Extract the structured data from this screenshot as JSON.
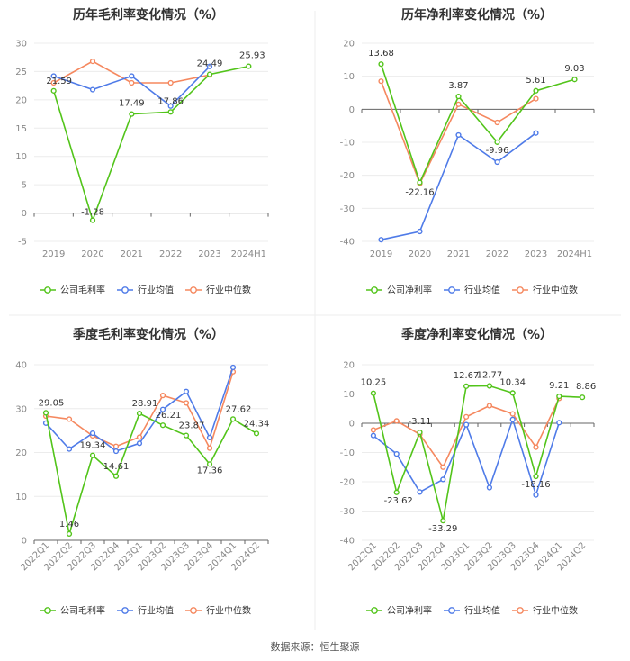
{
  "colors": {
    "company": "#52c41a",
    "avg": "#4f7be8",
    "median": "#f5885f"
  },
  "legend": {
    "avg": "行业均值",
    "median": "行业中位数"
  },
  "source": "数据来源：恒生聚源",
  "chart_data": [
    {
      "type": "line",
      "title": "历年毛利率变化情况（%）",
      "legend_company": "公司毛利率",
      "categories": [
        "2019",
        "2020",
        "2021",
        "2022",
        "2023",
        "2024H1"
      ],
      "ylim": [
        -5,
        30
      ],
      "yticks": [
        -5,
        0,
        5,
        10,
        15,
        20,
        25,
        30
      ],
      "series": [
        {
          "key": "company",
          "name": "公司毛利率",
          "values": [
            21.59,
            -1.28,
            17.49,
            17.86,
            24.49,
            25.93
          ],
          "labels": [
            "21.59",
            "-1.28",
            "17.49",
            "17.86",
            "24.49",
            "25.93"
          ]
        },
        {
          "key": "avg",
          "name": "行业均值",
          "values": [
            24.2,
            21.8,
            24.2,
            18.9,
            25.9,
            null
          ]
        },
        {
          "key": "median",
          "name": "行业中位数",
          "values": [
            23.0,
            26.8,
            23.0,
            23.0,
            24.4,
            null
          ]
        }
      ]
    },
    {
      "type": "line",
      "title": "历年净利率变化情况（%）",
      "legend_company": "公司净利率",
      "categories": [
        "2019",
        "2020",
        "2021",
        "2022",
        "2023",
        "2024H1"
      ],
      "ylim": [
        -40,
        20
      ],
      "yticks": [
        -40,
        -30,
        -20,
        -10,
        0,
        10,
        20
      ],
      "series": [
        {
          "key": "company",
          "name": "公司净利率",
          "values": [
            13.68,
            -22.16,
            3.87,
            -9.96,
            5.61,
            9.03
          ],
          "labels": [
            "13.68",
            "-22.16",
            "3.87",
            "-9.96",
            "5.61",
            "9.03"
          ]
        },
        {
          "key": "avg",
          "name": "行业均值",
          "values": [
            -39.5,
            -37.0,
            -7.8,
            -16.0,
            -7.2,
            null
          ]
        },
        {
          "key": "median",
          "name": "行业中位数",
          "values": [
            8.5,
            -22.5,
            1.5,
            -4.0,
            3.2,
            null
          ]
        }
      ]
    },
    {
      "type": "line",
      "title": "季度毛利率变化情况（%）",
      "legend_company": "公司毛利率",
      "categories": [
        "2022Q1",
        "2022Q2",
        "2022Q3",
        "2022Q4",
        "2023Q1",
        "2023Q2",
        "2023Q3",
        "2023Q4",
        "2024Q1",
        "2024Q2"
      ],
      "ylim": [
        0,
        40
      ],
      "yticks": [
        0,
        10,
        20,
        30,
        40
      ],
      "series": [
        {
          "key": "company",
          "name": "公司毛利率",
          "values": [
            29.05,
            1.46,
            19.34,
            14.61,
            28.91,
            26.21,
            23.87,
            17.36,
            27.62,
            24.34
          ],
          "labels": [
            "29.05",
            "1.46",
            "19.34",
            "14.61",
            "28.91",
            "26.21",
            "23.87",
            "17.36",
            "27.62",
            "24.34"
          ]
        },
        {
          "key": "avg",
          "name": "行业均值",
          "values": [
            26.7,
            20.8,
            24.4,
            20.3,
            22.1,
            29.8,
            33.9,
            23.4,
            39.4,
            null
          ]
        },
        {
          "key": "median",
          "name": "行业中位数",
          "values": [
            28.3,
            27.6,
            23.8,
            21.4,
            23.5,
            33.0,
            31.3,
            21.0,
            38.4,
            null
          ]
        }
      ]
    },
    {
      "type": "line",
      "title": "季度净利率变化情况（%）",
      "legend_company": "公司净利率",
      "categories": [
        "2022Q1",
        "2022Q2",
        "2022Q3",
        "2022Q4",
        "2023Q1",
        "2023Q2",
        "2023Q3",
        "2023Q4",
        "2024Q1",
        "2024Q2"
      ],
      "ylim": [
        -40,
        20
      ],
      "yticks": [
        -40,
        -30,
        -20,
        -10,
        0,
        10,
        20
      ],
      "series": [
        {
          "key": "company",
          "name": "公司净利率",
          "values": [
            10.25,
            -23.62,
            -3.11,
            -33.29,
            12.67,
            12.77,
            10.34,
            -18.16,
            9.21,
            8.86
          ],
          "labels": [
            "10.25",
            "-23.62",
            "-3.11",
            "-33.29",
            "12.67",
            "12.77",
            "10.34",
            "-18.16",
            "9.21",
            "8.86"
          ]
        },
        {
          "key": "avg",
          "name": "行业均值",
          "values": [
            -4.2,
            -10.5,
            -23.5,
            -19.2,
            -0.5,
            -22.0,
            1.3,
            -24.5,
            0.2,
            null
          ]
        },
        {
          "key": "median",
          "name": "行业中位数",
          "values": [
            -2.3,
            0.8,
            -3.8,
            -15.0,
            2.2,
            6.0,
            3.2,
            -8.2,
            8.5,
            null
          ]
        }
      ]
    }
  ]
}
